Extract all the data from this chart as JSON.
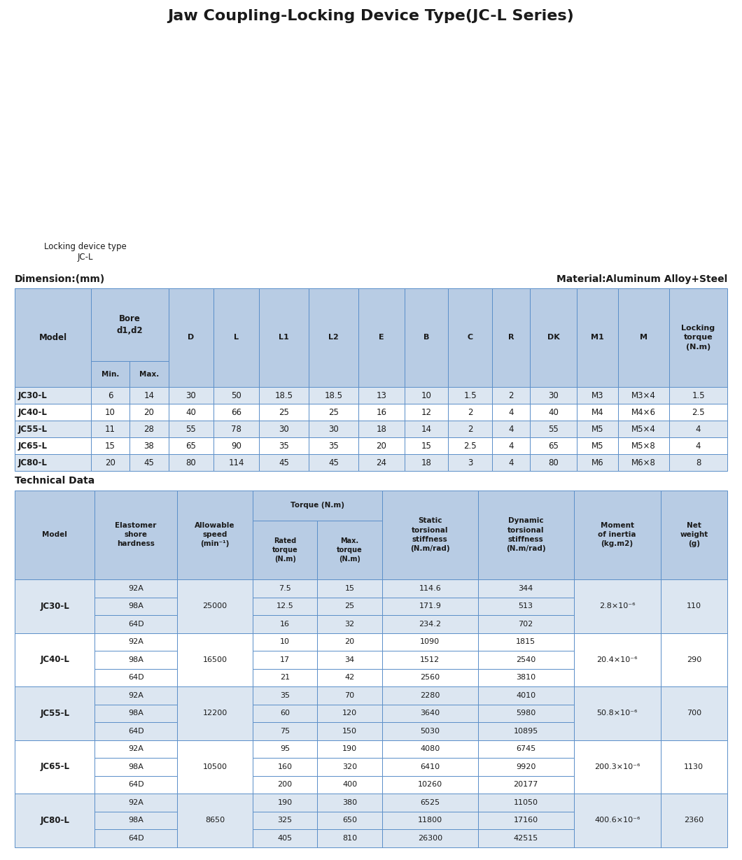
{
  "title": "Jaw Coupling-Locking Device Type(JC-L Series)",
  "title_bg": "#c5d9f1",
  "bg_color": "#ffffff",
  "dim_label": "Dimension:(mm)",
  "mat_label": "Material:Aluminum Alloy+Steel",
  "tech_label": "Technical Data",
  "dim_data": [
    [
      "JC30-L",
      "6",
      "14",
      "30",
      "50",
      "18.5",
      "18.5",
      "13",
      "10",
      "1.5",
      "2",
      "30",
      "M3",
      "M3×4",
      "1.5"
    ],
    [
      "JC40-L",
      "10",
      "20",
      "40",
      "66",
      "25",
      "25",
      "16",
      "12",
      "2",
      "4",
      "40",
      "M4",
      "M4×6",
      "2.5"
    ],
    [
      "JC55-L",
      "11",
      "28",
      "55",
      "78",
      "30",
      "30",
      "18",
      "14",
      "2",
      "4",
      "55",
      "M5",
      "M5×4",
      "4"
    ],
    [
      "JC65-L",
      "15",
      "38",
      "65",
      "90",
      "35",
      "35",
      "20",
      "15",
      "2.5",
      "4",
      "65",
      "M5",
      "M5×8",
      "4"
    ],
    [
      "JC80-L",
      "20",
      "45",
      "80",
      "114",
      "45",
      "45",
      "24",
      "18",
      "3",
      "4",
      "80",
      "M6",
      "M6×8",
      "8"
    ]
  ],
  "models_tech": [
    "JC30-L",
    "JC40-L",
    "JC55-L",
    "JC65-L",
    "JC80-L"
  ],
  "elastomers": [
    [
      "92A",
      "98A",
      "64D"
    ],
    [
      "92A",
      "98A",
      "64D"
    ],
    [
      "92A",
      "98A",
      "64D"
    ],
    [
      "92A",
      "98A",
      "64D"
    ],
    [
      "92A",
      "98A",
      "64D"
    ]
  ],
  "speeds": [
    "25000",
    "16500",
    "12200",
    "10500",
    "8650"
  ],
  "rated": [
    [
      "7.5",
      "12.5",
      "16"
    ],
    [
      "10",
      "17",
      "21"
    ],
    [
      "35",
      "60",
      "75"
    ],
    [
      "95",
      "160",
      "200"
    ],
    [
      "190",
      "325",
      "405"
    ]
  ],
  "maxtor": [
    [
      "15",
      "25",
      "32"
    ],
    [
      "20",
      "34",
      "42"
    ],
    [
      "70",
      "120",
      "150"
    ],
    [
      "190",
      "320",
      "400"
    ],
    [
      "380",
      "650",
      "810"
    ]
  ],
  "static_stiff": [
    [
      "114.6",
      "171.9",
      "234.2"
    ],
    [
      "1090",
      "1512",
      "2560"
    ],
    [
      "2280",
      "3640",
      "5030"
    ],
    [
      "4080",
      "6410",
      "10260"
    ],
    [
      "6525",
      "11800",
      "26300"
    ]
  ],
  "dynamic_stiff": [
    [
      "344",
      "513",
      "702"
    ],
    [
      "1815",
      "2540",
      "3810"
    ],
    [
      "4010",
      "5980",
      "10895"
    ],
    [
      "6745",
      "9920",
      "20177"
    ],
    [
      "11050",
      "17160",
      "42515"
    ]
  ],
  "inertia": [
    "2.8×10⁻⁶",
    "20.4×10⁻⁶",
    "50.8×10⁻⁶",
    "200.3×10⁻⁶",
    "400.6×10⁻⁶"
  ],
  "net_w": [
    "110",
    "290",
    "700",
    "1130",
    "2360"
  ],
  "header_bg": "#b8cce4",
  "row_alt1": "#ffffff",
  "row_alt2": "#dce6f1",
  "text_color": "#1a1a1a",
  "border_color": "#5b8fc9",
  "locking_device_text": "Locking device type\nJC-L"
}
